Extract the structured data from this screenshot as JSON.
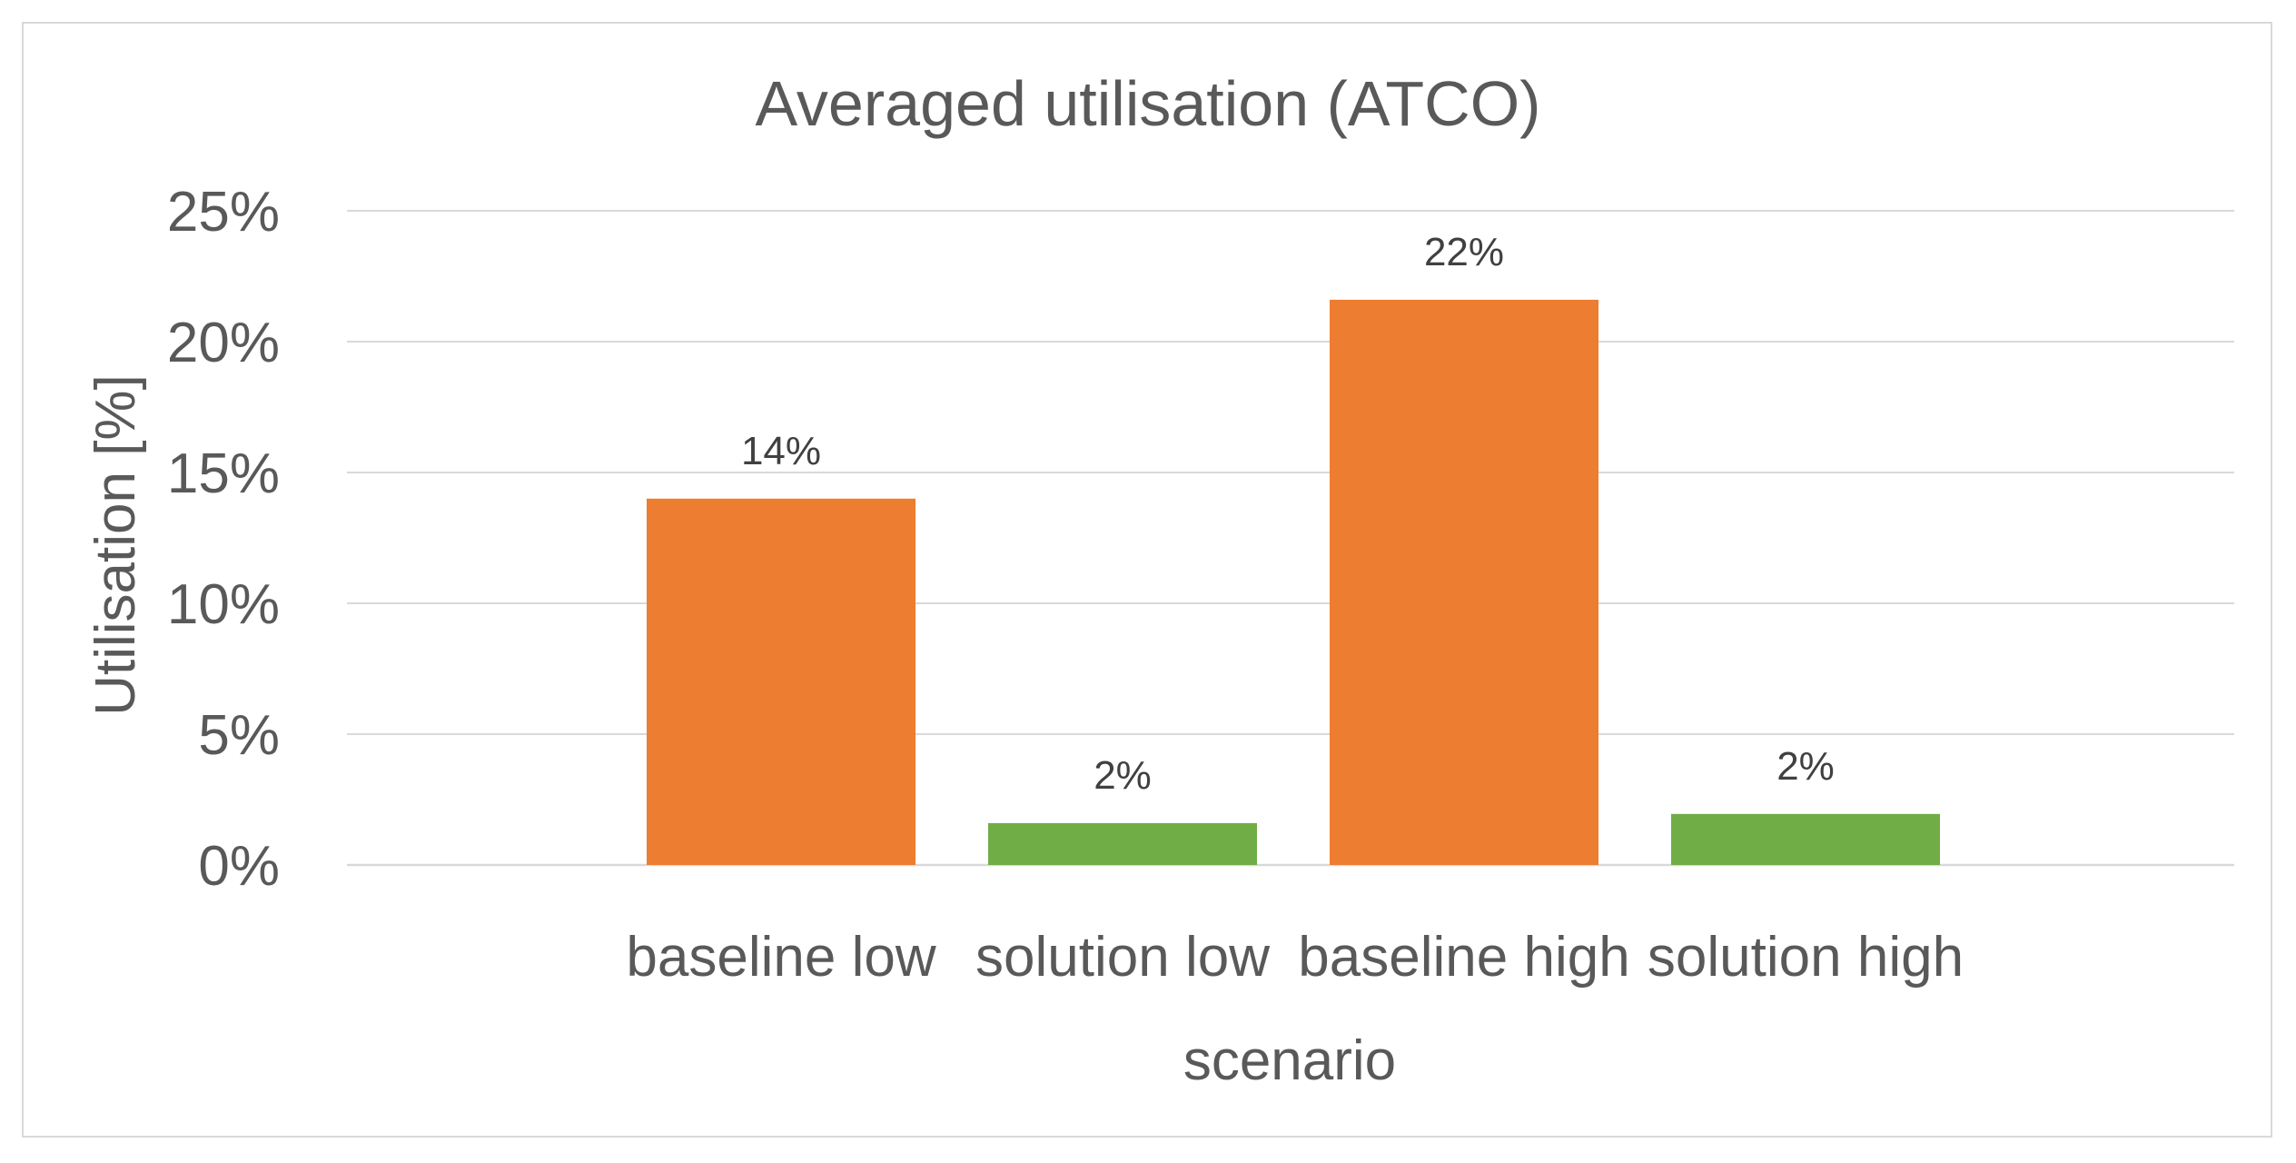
{
  "chart_data": {
    "type": "bar",
    "title": "Averaged utilisation (ATCO)",
    "xlabel": "scenario",
    "ylabel": "Utilisation [%]",
    "categories": [
      "baseline low",
      "solution low",
      "baseline high",
      "solution high"
    ],
    "values": [
      14.0,
      1.6,
      21.6,
      1.95
    ],
    "data_labels": [
      "14%",
      "2%",
      "22%",
      "2%"
    ],
    "bar_colors": [
      "#ED7D31",
      "#70AD47",
      "#ED7D31",
      "#70AD47"
    ],
    "ylim": [
      0,
      25
    ],
    "yticks": [
      0,
      5,
      10,
      15,
      20,
      25
    ],
    "ytick_labels": [
      "0%",
      "5%",
      "10%",
      "15%",
      "20%",
      "25%"
    ],
    "grid": true,
    "legend": "none"
  }
}
